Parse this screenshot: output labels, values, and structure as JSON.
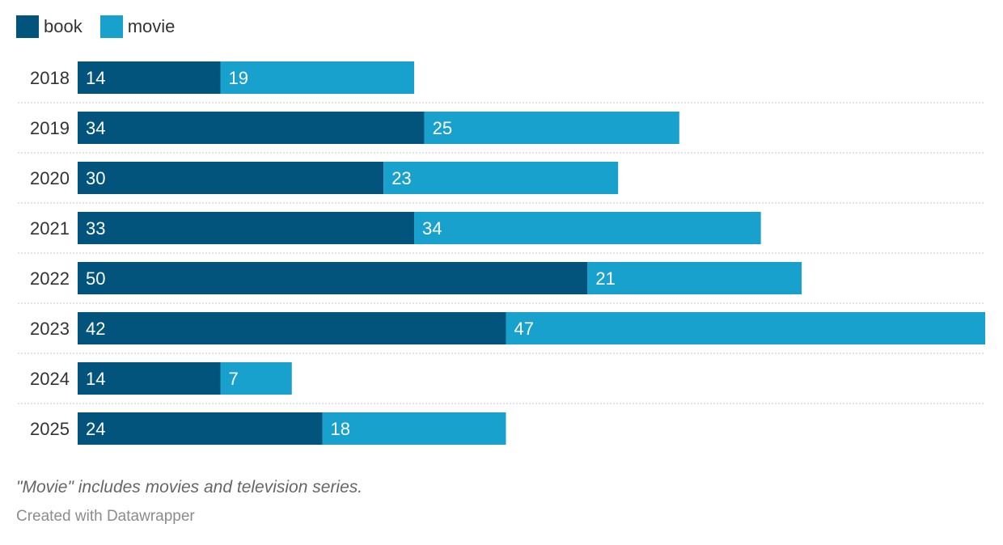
{
  "chart_data": {
    "type": "bar",
    "orientation": "horizontal",
    "stacked": true,
    "categories": [
      "2018",
      "2019",
      "2020",
      "2021",
      "2022",
      "2023",
      "2024",
      "2025"
    ],
    "series": [
      {
        "name": "book",
        "color": "#03547c",
        "values": [
          14,
          34,
          30,
          33,
          50,
          42,
          14,
          24
        ]
      },
      {
        "name": "movie",
        "color": "#18a1cd",
        "values": [
          19,
          25,
          23,
          34,
          21,
          47,
          7,
          18
        ]
      }
    ],
    "xlim": [
      0,
      89
    ],
    "legend_position": "top-left"
  },
  "legend": [
    {
      "label": "book",
      "color": "#03547c"
    },
    {
      "label": "movie",
      "color": "#18a1cd"
    }
  ],
  "notes": "\"Movie\" includes movies and television series.",
  "credit": "Created with Datawrapper"
}
